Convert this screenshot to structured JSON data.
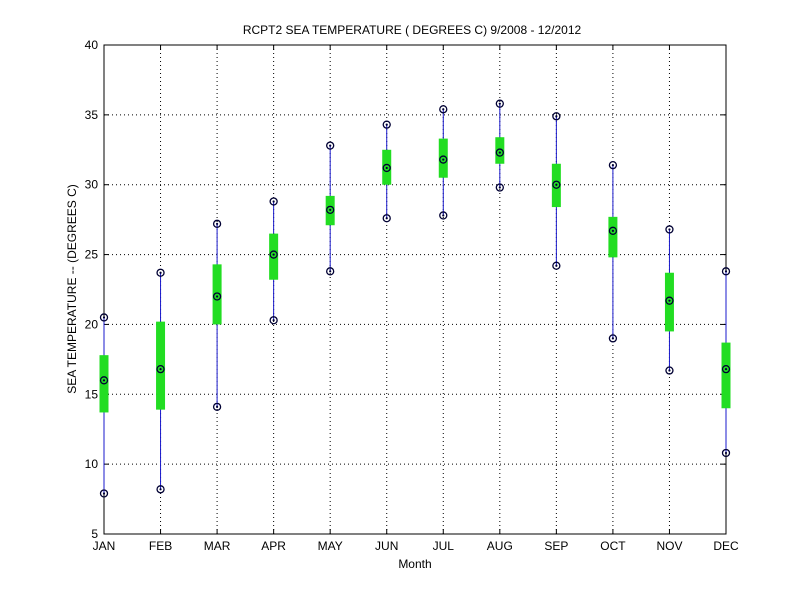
{
  "chart_data": {
    "type": "box",
    "title": "RCPT2  SEA TEMPERATURE ( DEGREES C) 9/2008 - 12/2012",
    "xlabel": "Month",
    "ylabel": "SEA TEMPERATURE -- (DEGREES C)",
    "categories": [
      "JAN",
      "FEB",
      "MAR",
      "APR",
      "MAY",
      "JUN",
      "JUL",
      "AUG",
      "SEP",
      "OCT",
      "NOV",
      "DEC"
    ],
    "ylim": [
      5,
      40
    ],
    "yticks": [
      5,
      10,
      15,
      20,
      25,
      30,
      35,
      40
    ],
    "grid": true,
    "colors": {
      "whisker": "#1a1acc",
      "box": "#22dd22",
      "marker": "#000033",
      "grid": "#000000"
    },
    "series": [
      {
        "min": [
          7.9,
          8.2,
          14.1,
          20.3,
          23.8,
          27.6,
          27.8,
          29.8,
          24.2,
          19.0,
          16.7,
          10.8
        ],
        "q1": [
          13.7,
          13.9,
          20.0,
          23.2,
          27.1,
          30.0,
          30.5,
          31.5,
          28.4,
          24.8,
          19.5,
          14.0
        ],
        "median": [
          16.0,
          16.8,
          22.0,
          25.0,
          28.2,
          31.2,
          31.8,
          32.3,
          30.0,
          26.7,
          21.7,
          16.8
        ],
        "q3": [
          17.8,
          20.2,
          24.3,
          26.5,
          29.2,
          32.5,
          33.3,
          33.4,
          31.5,
          27.7,
          23.7,
          18.7
        ],
        "max": [
          20.5,
          23.7,
          27.2,
          28.8,
          32.8,
          34.3,
          35.4,
          35.8,
          34.9,
          31.4,
          26.8,
          23.8
        ]
      }
    ]
  }
}
